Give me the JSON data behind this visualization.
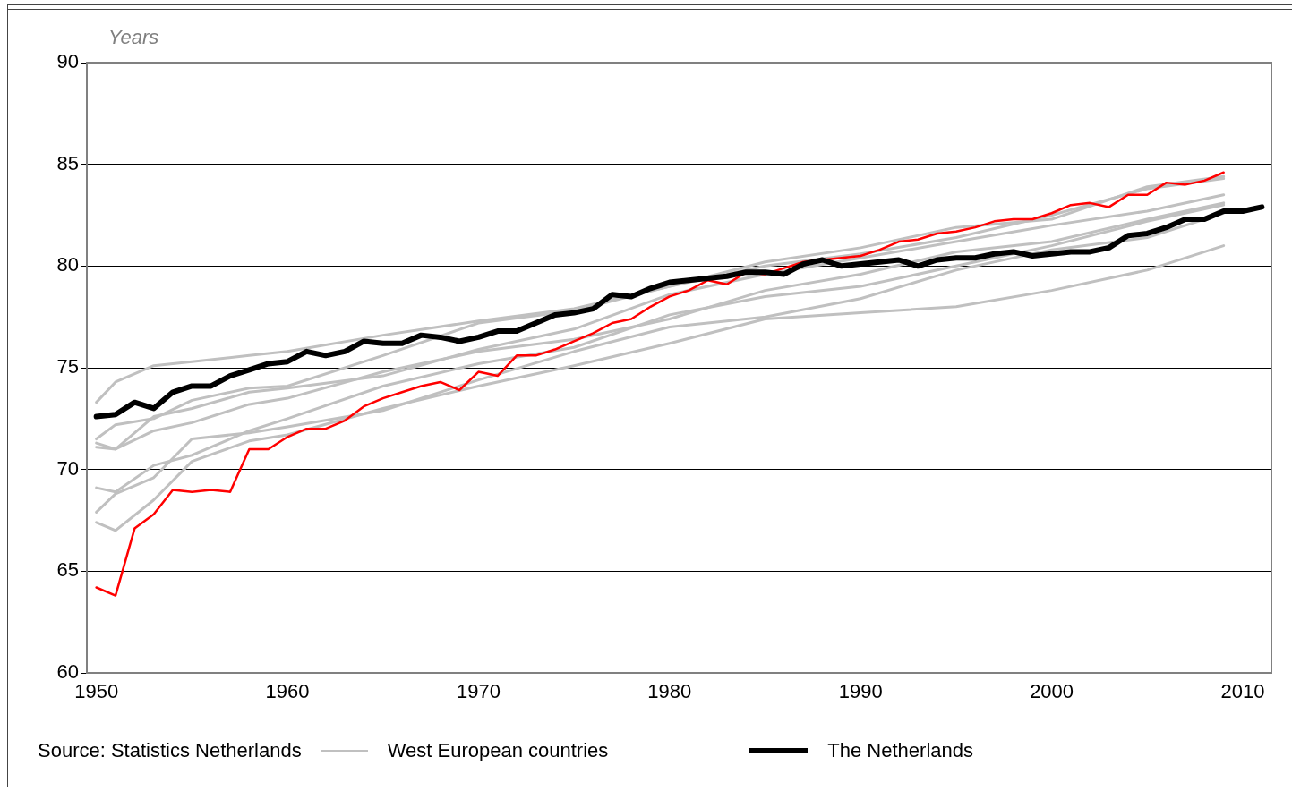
{
  "chart_data": {
    "type": "line",
    "ylabel": "Years",
    "x": [
      1950,
      1951,
      1953,
      1955,
      1958,
      1960,
      1965,
      1970,
      1975,
      1980,
      1985,
      1990,
      1995,
      2000,
      2005,
      2009
    ],
    "xlim": [
      1949.5,
      2011.5
    ],
    "xticks": [
      1950,
      1960,
      1970,
      1980,
      1990,
      2000,
      2010
    ],
    "ylim": [
      60,
      90
    ],
    "yticks": [
      60,
      65,
      70,
      75,
      80,
      85,
      90
    ],
    "grid": "y",
    "legend": "bottom",
    "marker": "none",
    "line_style": "solid",
    "annotations": [
      "Source: Statistics Netherlands"
    ],
    "series": [
      {
        "name": "West European countries",
        "color": "#c0c0c0",
        "values": [
          73.3,
          74.3,
          75.1,
          75.3,
          75.6,
          75.8,
          76.6,
          77.3,
          77.9,
          79.0,
          80.2,
          80.9,
          81.9,
          82.3,
          83.9,
          84.4
        ]
      },
      {
        "color": "#c0c0c0",
        "values": [
          71.5,
          72.2,
          72.5,
          73.4,
          74.0,
          74.1,
          75.6,
          77.2,
          77.8,
          79.0,
          80.0,
          80.6,
          81.4,
          82.5,
          83.8,
          84.3
        ]
      },
      {
        "color": "#c0c0c0",
        "values": [
          71.3,
          71.0,
          72.6,
          73.0,
          73.8,
          74.0,
          74.6,
          75.9,
          76.9,
          78.6,
          79.6,
          80.4,
          81.2,
          82.0,
          82.7,
          83.5
        ]
      },
      {
        "color": "#c0c0c0",
        "values": [
          71.1,
          71.0,
          71.9,
          72.3,
          73.2,
          73.5,
          74.8,
          75.8,
          76.4,
          77.4,
          78.8,
          79.6,
          80.7,
          81.2,
          82.3,
          83.1
        ]
      },
      {
        "color": "#c0c0c0",
        "values": [
          69.1,
          68.9,
          70.2,
          70.7,
          71.9,
          72.5,
          74.1,
          75.2,
          76.0,
          77.6,
          78.5,
          79.0,
          80.0,
          81.0,
          82.2,
          83.0
        ]
      },
      {
        "color": "#c0c0c0",
        "values": [
          67.9,
          68.8,
          69.6,
          71.5,
          71.8,
          72.1,
          72.9,
          74.4,
          75.8,
          77.0,
          77.5,
          78.4,
          79.8,
          80.8,
          81.4,
          82.6
        ]
      },
      {
        "color": "#c0c0c0",
        "values": [
          67.4,
          67.0,
          68.5,
          70.4,
          71.4,
          71.7,
          73.0,
          74.1,
          75.1,
          76.2,
          77.4,
          77.7,
          78.0,
          78.8,
          79.8,
          81.0
        ]
      },
      {
        "color": "#ff0000",
        "x": [
          1950,
          1951,
          1952,
          1953,
          1954,
          1955,
          1956,
          1957,
          1958,
          1959,
          1960,
          1961,
          1962,
          1963,
          1964,
          1965,
          1966,
          1967,
          1968,
          1969,
          1970,
          1971,
          1972,
          1973,
          1974,
          1975,
          1976,
          1977,
          1978,
          1979,
          1980,
          1981,
          1982,
          1983,
          1984,
          1985,
          1986,
          1987,
          1988,
          1989,
          1990,
          1991,
          1992,
          1993,
          1994,
          1995,
          1996,
          1997,
          1998,
          1999,
          2000,
          2001,
          2002,
          2003,
          2004,
          2005,
          2006,
          2007,
          2008,
          2009
        ],
        "values": [
          64.2,
          63.8,
          67.1,
          67.8,
          69.0,
          68.9,
          69.0,
          68.9,
          71.0,
          71.0,
          71.6,
          72.0,
          72.0,
          72.4,
          73.1,
          73.5,
          73.8,
          74.1,
          74.3,
          73.9,
          74.8,
          74.6,
          75.6,
          75.6,
          75.9,
          76.3,
          76.7,
          77.2,
          77.4,
          78.0,
          78.5,
          78.8,
          79.3,
          79.1,
          79.7,
          79.6,
          79.9,
          80.2,
          80.3,
          80.4,
          80.5,
          80.8,
          81.2,
          81.3,
          81.6,
          81.7,
          81.9,
          82.2,
          82.3,
          82.3,
          82.6,
          83.0,
          83.1,
          82.9,
          83.5,
          83.5,
          84.1,
          84.0,
          84.2,
          84.6
        ]
      },
      {
        "name": "The Netherlands",
        "color": "#000000",
        "x": [
          1950,
          1951,
          1952,
          1953,
          1954,
          1955,
          1956,
          1957,
          1958,
          1959,
          1960,
          1961,
          1962,
          1963,
          1964,
          1965,
          1966,
          1967,
          1968,
          1969,
          1970,
          1971,
          1972,
          1973,
          1974,
          1975,
          1976,
          1977,
          1978,
          1979,
          1980,
          1981,
          1982,
          1983,
          1984,
          1985,
          1986,
          1987,
          1988,
          1989,
          1990,
          1991,
          1992,
          1993,
          1994,
          1995,
          1996,
          1997,
          1998,
          1999,
          2000,
          2001,
          2002,
          2003,
          2004,
          2005,
          2006,
          2007,
          2008,
          2009,
          2010,
          2011
        ],
        "values": [
          72.6,
          72.7,
          73.3,
          73.0,
          73.8,
          74.1,
          74.1,
          74.6,
          74.9,
          75.2,
          75.3,
          75.8,
          75.6,
          75.8,
          76.3,
          76.2,
          76.2,
          76.6,
          76.5,
          76.3,
          76.5,
          76.8,
          76.8,
          77.2,
          77.6,
          77.7,
          77.9,
          78.6,
          78.5,
          78.9,
          79.2,
          79.3,
          79.4,
          79.5,
          79.7,
          79.7,
          79.6,
          80.1,
          80.3,
          80.0,
          80.1,
          80.2,
          80.3,
          80.0,
          80.3,
          80.4,
          80.4,
          80.6,
          80.7,
          80.5,
          80.6,
          80.7,
          80.7,
          80.9,
          81.5,
          81.6,
          81.9,
          82.3,
          82.3,
          82.7,
          82.7,
          82.9
        ]
      }
    ]
  }
}
